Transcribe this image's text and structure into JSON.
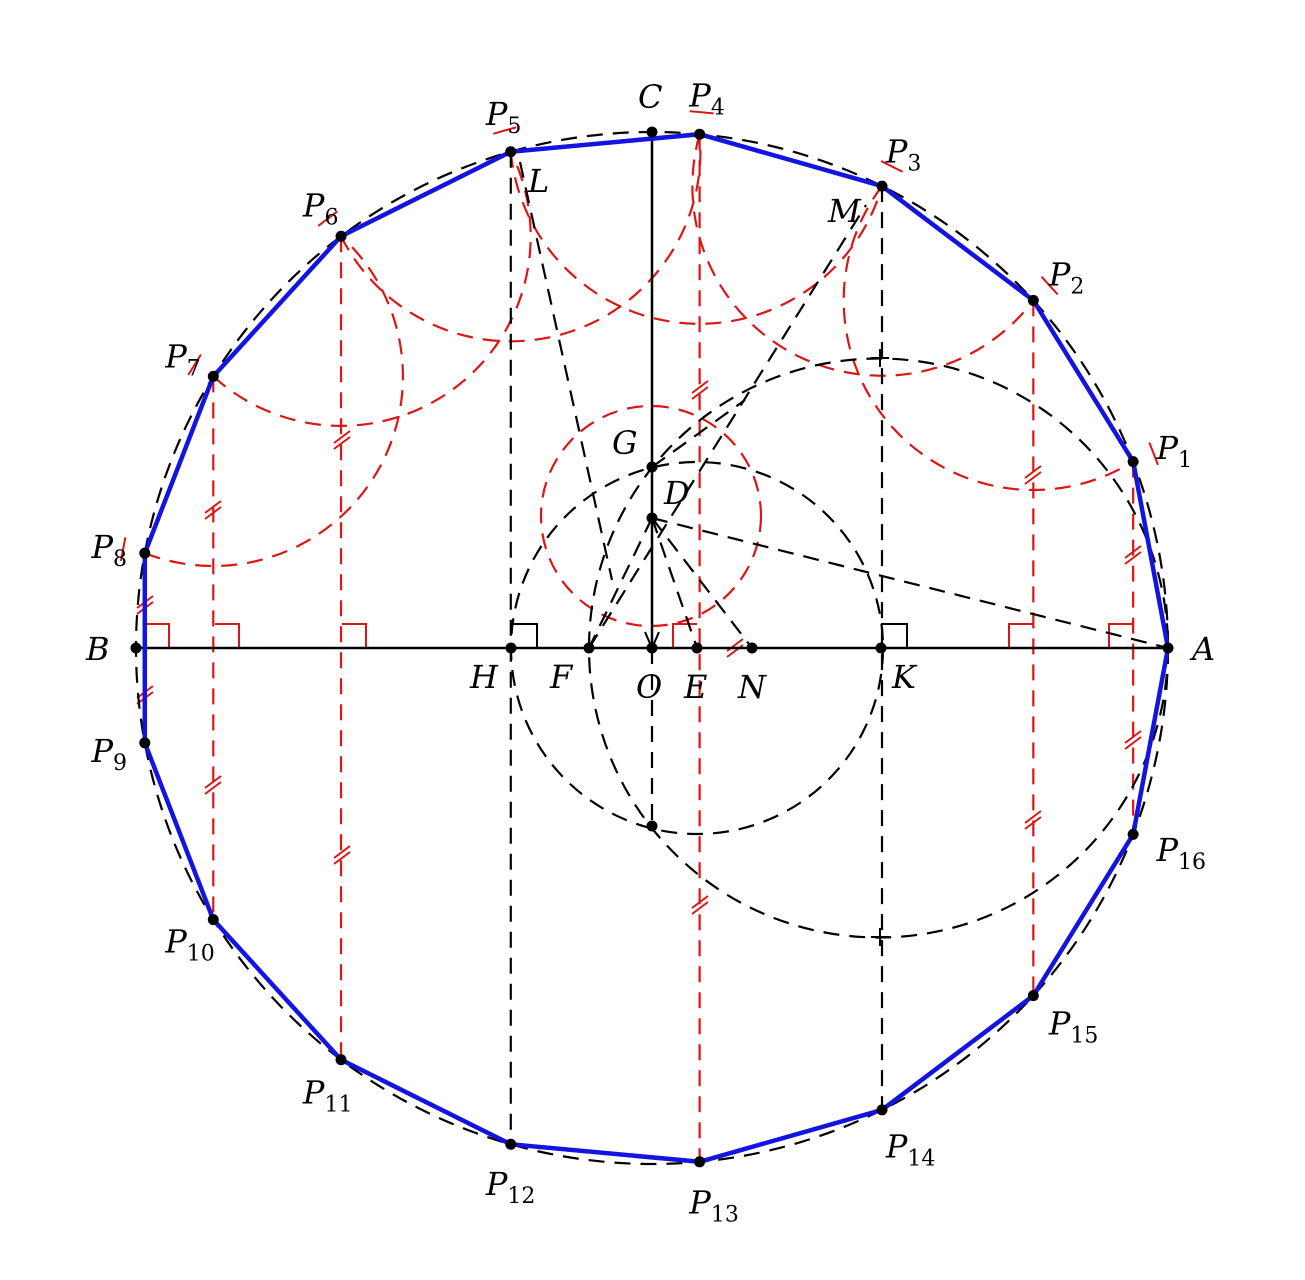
{
  "diagram": {
    "colors": {
      "polygon": "#1414e0",
      "construction_red": "#dd1515",
      "construction_black": "#000000"
    },
    "polygon_sides": 17,
    "vertex_labels": [
      {
        "name": "A",
        "sub": ""
      },
      {
        "name": "P",
        "sub": "1"
      },
      {
        "name": "P",
        "sub": "2"
      },
      {
        "name": "P",
        "sub": "3"
      },
      {
        "name": "P",
        "sub": "4"
      },
      {
        "name": "P",
        "sub": "5"
      },
      {
        "name": "P",
        "sub": "6"
      },
      {
        "name": "P",
        "sub": "7"
      },
      {
        "name": "P",
        "sub": "8"
      },
      {
        "name": "P",
        "sub": "9"
      },
      {
        "name": "P",
        "sub": "10"
      },
      {
        "name": "P",
        "sub": "11"
      },
      {
        "name": "P",
        "sub": "12"
      },
      {
        "name": "P",
        "sub": "13"
      },
      {
        "name": "P",
        "sub": "14"
      },
      {
        "name": "P",
        "sub": "15"
      },
      {
        "name": "P",
        "sub": "16"
      }
    ],
    "point_labels": {
      "B": "B",
      "C": "C",
      "O": "O",
      "D": "D",
      "G": "G",
      "E": "E",
      "F": "F",
      "N": "N",
      "H": "H",
      "K": "K",
      "L": "L",
      "M": "M"
    }
  }
}
